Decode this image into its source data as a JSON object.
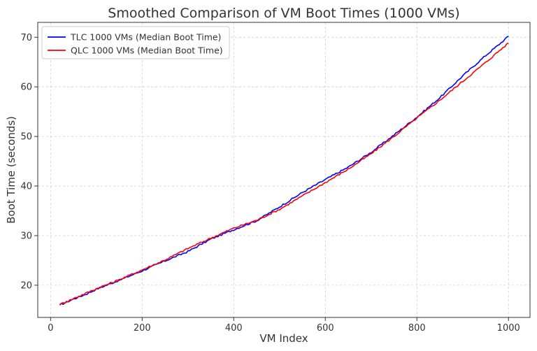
{
  "chart_data": {
    "type": "line",
    "title": "Smoothed Comparison of VM Boot Times (1000 VMs)",
    "xlabel": "VM Index",
    "ylabel": "Boot Time (seconds)",
    "xlim": [
      -28,
      1047
    ],
    "ylim": [
      13.5,
      73
    ],
    "xticks": [
      0,
      200,
      400,
      600,
      800,
      1000
    ],
    "yticks": [
      20,
      30,
      40,
      50,
      60,
      70
    ],
    "grid": true,
    "legend_position": "top-left",
    "series": [
      {
        "name": "TLC 1000 VMs (Median Boot Time)",
        "color": "#0000ff",
        "x": [
          20,
          50,
          80,
          100,
          150,
          200,
          250,
          300,
          350,
          400,
          450,
          500,
          550,
          600,
          650,
          700,
          750,
          800,
          850,
          900,
          950,
          980,
          1000
        ],
        "y": [
          16.0,
          17.2,
          18.3,
          19.2,
          21.0,
          22.9,
          24.9,
          26.8,
          29.3,
          31.2,
          33.0,
          35.8,
          38.7,
          41.3,
          43.8,
          46.8,
          50.3,
          53.9,
          57.8,
          62.2,
          66.3,
          68.6,
          70.2
        ]
      },
      {
        "name": "QLC 1000 VMs (Median Boot Time)",
        "color": "#ff0000",
        "x": [
          20,
          50,
          80,
          100,
          150,
          200,
          250,
          300,
          350,
          400,
          450,
          500,
          550,
          600,
          650,
          700,
          750,
          800,
          850,
          900,
          950,
          980,
          1000
        ],
        "y": [
          16.1,
          17.3,
          18.5,
          19.3,
          21.1,
          23.1,
          25.1,
          27.4,
          29.5,
          31.5,
          33.1,
          35.3,
          38.0,
          40.7,
          43.4,
          46.5,
          50.0,
          53.7,
          57.3,
          61.1,
          64.9,
          67.3,
          68.8
        ]
      }
    ]
  }
}
